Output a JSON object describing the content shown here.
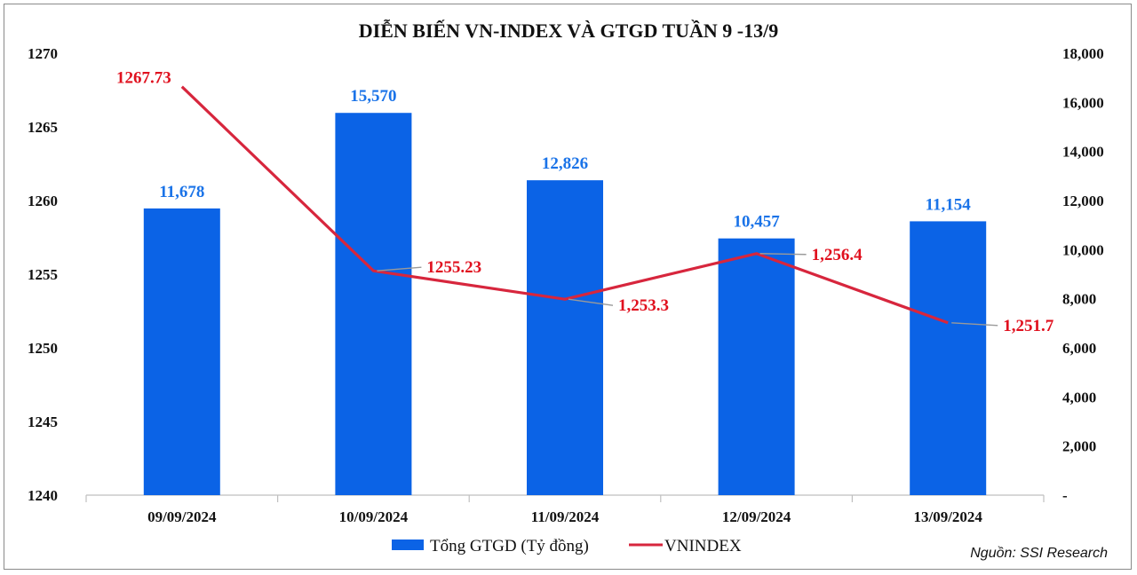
{
  "chart_data": {
    "type": "bar",
    "title": "DIỄN BIẾN VN-INDEX VÀ GTGD TUẦN 9 -13/9",
    "categories": [
      "09/09/2024",
      "10/09/2024",
      "11/09/2024",
      "12/09/2024",
      "13/09/2024"
    ],
    "series": [
      {
        "name": "Tổng GTGD (Tỷ đồng)",
        "type": "bar",
        "axis": "right",
        "values": [
          11678,
          15570,
          12826,
          10457,
          11154
        ],
        "labels": [
          "11,678",
          "15,570",
          "12,826",
          "10,457",
          "11,154"
        ],
        "color": "#0b63e6",
        "label_color": "#1a73e8"
      },
      {
        "name": "VNINDEX",
        "type": "line",
        "axis": "left",
        "values": [
          1267.73,
          1255.23,
          1253.3,
          1256.4,
          1251.7
        ],
        "labels": [
          "1267.73",
          "1255.23",
          "1,253.3",
          "1,256.4",
          "1,251.7"
        ],
        "color": "#d7263d",
        "label_color": "#e0101e"
      }
    ],
    "y_left": {
      "lim": [
        1240,
        1270
      ],
      "ticks": [
        1240,
        1245,
        1250,
        1255,
        1260,
        1265,
        1270
      ],
      "tick_labels": [
        "1240",
        "1245",
        "1250",
        "1255",
        "1260",
        "1265",
        "1270"
      ]
    },
    "y_right": {
      "lim": [
        0,
        18000
      ],
      "ticks": [
        0,
        2000,
        4000,
        6000,
        8000,
        10000,
        12000,
        14000,
        16000,
        18000
      ],
      "tick_labels": [
        "-",
        "2,000",
        "4,000",
        "6,000",
        "8,000",
        "10,000",
        "12,000",
        "14,000",
        "16,000",
        "18,000"
      ]
    },
    "grid": false,
    "legend_position": "bottom"
  },
  "source": "Nguồn: SSI Research"
}
